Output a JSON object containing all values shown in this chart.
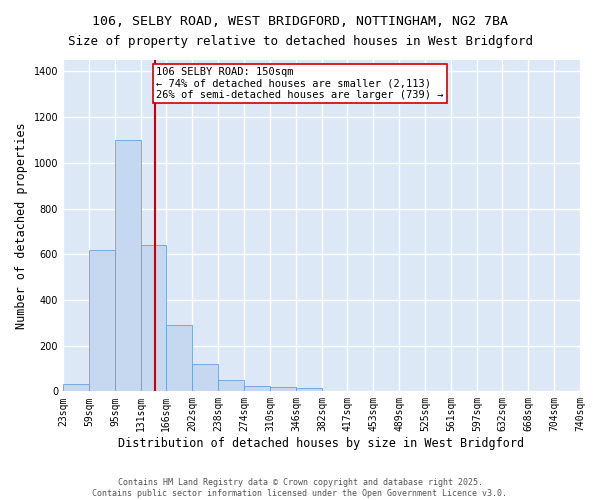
{
  "title_line1": "106, SELBY ROAD, WEST BRIDGFORD, NOTTINGHAM, NG2 7BA",
  "title_line2": "Size of property relative to detached houses in West Bridgford",
  "xlabel": "Distribution of detached houses by size in West Bridgford",
  "ylabel": "Number of detached properties",
  "bar_color": "#c5d8f0",
  "bar_edge_color": "#6a9fd8",
  "background_color": "#dce8f5",
  "grid_color": "#ffffff",
  "vline_color": "#cc0000",
  "vline_x": 150,
  "annotation_text": "106 SELBY ROAD: 150sqm\n← 74% of detached houses are smaller (2,113)\n26% of semi-detached houses are larger (739) →",
  "annotation_box_color": "#ffffff",
  "annotation_border_color": "#cc0000",
  "bins": [
    23,
    59,
    95,
    131,
    166,
    202,
    238,
    274,
    310,
    346,
    382,
    417,
    453,
    489,
    525,
    561,
    597,
    632,
    668,
    704,
    740
  ],
  "bar_heights": [
    30,
    620,
    1100,
    640,
    290,
    120,
    50,
    25,
    20,
    15,
    0,
    0,
    0,
    0,
    0,
    0,
    0,
    0,
    0,
    0
  ],
  "ylim": [
    0,
    1450
  ],
  "yticks": [
    0,
    200,
    400,
    600,
    800,
    1000,
    1200,
    1400
  ],
  "footer_line1": "Contains HM Land Registry data © Crown copyright and database right 2025.",
  "footer_line2": "Contains public sector information licensed under the Open Government Licence v3.0.",
  "title_fontsize": 9.5,
  "axis_label_fontsize": 8.5,
  "tick_fontsize": 7,
  "annotation_fontsize": 7.5,
  "footer_fontsize": 6
}
